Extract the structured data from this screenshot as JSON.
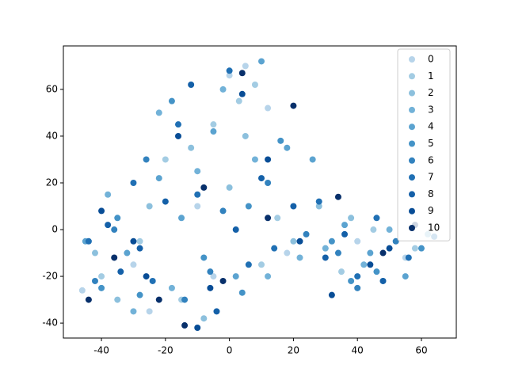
{
  "chart_data": {
    "type": "scatter",
    "xlim": [
      -51.9,
      70.9
    ],
    "ylim": [
      -46.4,
      78.6
    ],
    "xticks": [
      -40,
      -20,
      0,
      20,
      40,
      60
    ],
    "yticks": [
      -40,
      -20,
      0,
      20,
      40,
      60
    ],
    "grid": false,
    "legend": "upper right",
    "series": [
      {
        "name": "0",
        "color": "#b7d4ea",
        "x": [
          -46,
          -30,
          -10,
          5,
          18,
          12,
          40,
          55,
          -5,
          0,
          -25,
          30
        ],
        "values": [
          -26,
          -15,
          10,
          70,
          -10,
          52,
          -5,
          -12,
          -20,
          66,
          -35,
          -8
        ]
      },
      {
        "name": "1",
        "color": "#a3cce3",
        "x": [
          -40,
          -20,
          -5,
          3,
          15,
          10,
          35,
          58,
          -28,
          8,
          45,
          -15
        ],
        "values": [
          -20,
          30,
          45,
          55,
          5,
          -15,
          -18,
          -8,
          -5,
          62,
          0,
          -30
        ]
      },
      {
        "name": "2",
        "color": "#8cc0dd",
        "x": [
          -35,
          -25,
          -12,
          0,
          20,
          28,
          48,
          62,
          -8,
          5,
          -42,
          38
        ],
        "values": [
          -30,
          10,
          35,
          18,
          -5,
          10,
          -22,
          -2,
          -38,
          40,
          -10,
          5
        ]
      },
      {
        "name": "3",
        "color": "#72b2d8",
        "x": [
          -38,
          -18,
          -2,
          8,
          22,
          30,
          50,
          42,
          -30,
          -10,
          12,
          -22
        ],
        "values": [
          15,
          -25,
          60,
          30,
          -12,
          -8,
          0,
          -15,
          -35,
          25,
          -20,
          50
        ]
      },
      {
        "name": "4",
        "color": "#5ba3d0",
        "x": [
          -32,
          -15,
          2,
          10,
          26,
          44,
          55,
          -45,
          -22,
          -5,
          36,
          18
        ],
        "values": [
          -10,
          5,
          -20,
          72,
          30,
          -10,
          -20,
          -5,
          22,
          42,
          2,
          35
        ]
      },
      {
        "name": "5",
        "color": "#4493c7",
        "x": [
          -28,
          -8,
          4,
          16,
          32,
          46,
          60,
          -40,
          -18,
          6,
          -35,
          38
        ],
        "values": [
          -28,
          -12,
          -27,
          38,
          -5,
          -18,
          -8,
          -25,
          55,
          10,
          5,
          -22
        ]
      },
      {
        "name": "6",
        "color": "#3282be",
        "x": [
          -36,
          -14,
          -2,
          12,
          34,
          52,
          64,
          -26,
          -6,
          24,
          40,
          -42
        ],
        "values": [
          0,
          -30,
          8,
          20,
          -10,
          -5,
          -3,
          30,
          -18,
          -2,
          -25,
          -22
        ]
      },
      {
        "name": "7",
        "color": "#2070b4",
        "x": [
          -44,
          -24,
          -10,
          6,
          28,
          40,
          56,
          -16,
          0,
          14,
          -30,
          46
        ],
        "values": [
          -5,
          -22,
          15,
          -15,
          12,
          -20,
          -12,
          45,
          68,
          -8,
          20,
          5
        ]
      },
      {
        "name": "8",
        "color": "#1460a8",
        "x": [
          -34,
          -20,
          -4,
          10,
          30,
          48,
          -12,
          -28,
          2,
          36,
          -38,
          20
        ],
        "values": [
          -18,
          12,
          -35,
          22,
          -12,
          -22,
          62,
          -8,
          0,
          -2,
          2,
          10
        ]
      },
      {
        "name": "9",
        "color": "#084d96",
        "x": [
          -40,
          -26,
          -16,
          -6,
          4,
          22,
          32,
          44,
          -10,
          12,
          -30,
          50
        ],
        "values": [
          8,
          -20,
          40,
          -25,
          58,
          -5,
          -28,
          -15,
          -42,
          30,
          -5,
          -8
        ]
      },
      {
        "name": "10",
        "color": "#08306b",
        "x": [
          -44,
          -22,
          -14,
          4,
          20,
          34,
          48,
          -8,
          12,
          -36,
          -2,
          58
        ],
        "values": [
          -30,
          -30,
          -41,
          67,
          53,
          14,
          -10,
          18,
          5,
          -12,
          -22,
          2
        ]
      }
    ]
  }
}
